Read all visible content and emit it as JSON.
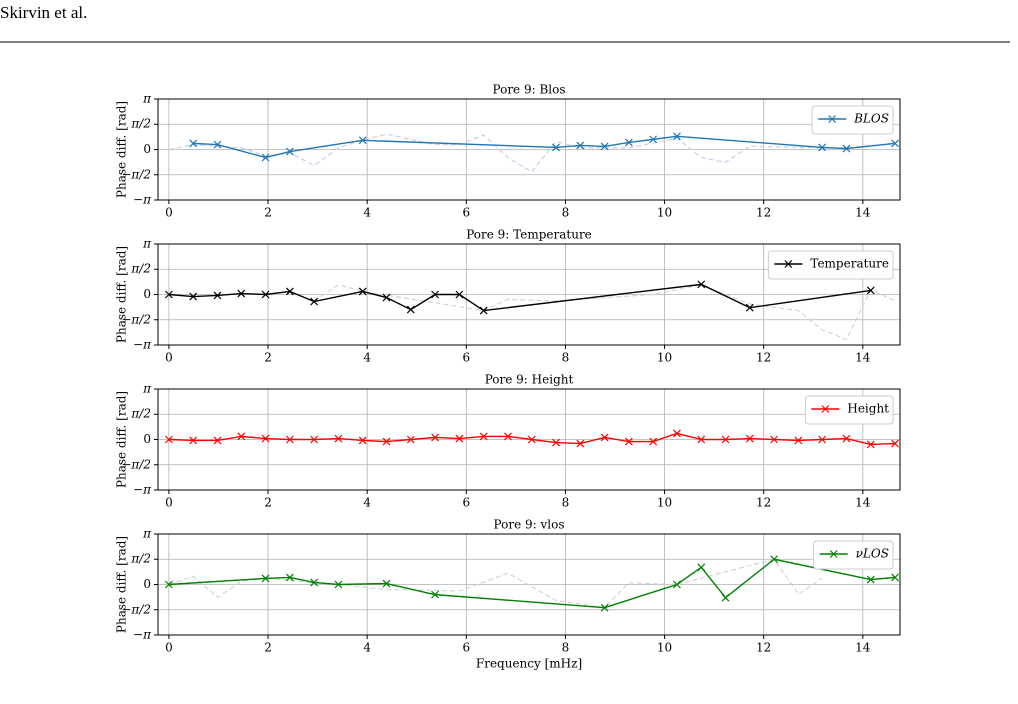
{
  "header": "Skirvin et al.",
  "chart_data": [
    {
      "type": "line",
      "title": "Pore 9: Blos",
      "ylabel": "Phase diff. [rad]",
      "xlim": [
        -0.22,
        14.75
      ],
      "xticks": [
        0,
        2,
        4,
        6,
        8,
        10,
        12,
        14
      ],
      "ylim": [
        -3.14159,
        3.14159
      ],
      "yticks": [
        {
          "value": -3.14159,
          "label": "−π"
        },
        {
          "value": -1.5708,
          "label": "−π/2"
        },
        0,
        {
          "value": 1.5708,
          "label": "π/2"
        },
        {
          "value": 3.14159,
          "label": "π"
        }
      ],
      "grid": true,
      "legend": "upper right",
      "series": [
        {
          "color": "#c9cdeb",
          "linestyle": "dashed",
          "x": [
            0,
            0.49,
            1.46,
            1.95,
            2.44,
            2.93,
            3.42,
            3.91,
            4.39,
            5.37,
            5.86,
            6.35,
            6.84,
            7.32,
            7.81,
            8.3,
            9.28,
            10.25,
            10.74,
            11.23,
            11.72,
            13.18,
            13.67,
            14.65
          ],
          "values": [
            0,
            0.3,
            0.1,
            -0.4,
            -0.2,
            -1.0,
            0.1,
            0.6,
            0.95,
            0.3,
            0.3,
            0.9,
            -0.5,
            -1.4,
            0.5,
            0.1,
            0.1,
            0.7,
            -0.5,
            -0.8,
            0.2,
            0.1,
            0.1,
            0.4
          ]
        },
        {
          "name": "BLOS",
          "color": "#1f77b4",
          "linestyle": "solid",
          "marker": "x",
          "x": [
            0.49,
            0.98,
            1.95,
            2.44,
            3.91,
            7.81,
            8.3,
            8.79,
            9.28,
            9.77,
            10.25,
            13.18,
            13.67,
            14.65
          ],
          "values": [
            0.38,
            0.31,
            -0.5,
            -0.13,
            0.57,
            0.13,
            0.25,
            0.19,
            0.44,
            0.63,
            0.82,
            0.13,
            0.06,
            0.38
          ]
        }
      ]
    },
    {
      "type": "line",
      "title": "Pore 9: Temperature",
      "ylabel": "Phase diff. [rad]",
      "xlim": [
        -0.22,
        14.75
      ],
      "xticks": [
        0,
        2,
        4,
        6,
        8,
        10,
        12,
        14
      ],
      "ylim": [
        -3.14159,
        3.14159
      ],
      "yticks": [
        {
          "value": -3.14159,
          "label": "−π"
        },
        {
          "value": -1.5708,
          "label": "−π/2"
        },
        0,
        {
          "value": 1.5708,
          "label": "π/2"
        },
        {
          "value": 3.14159,
          "label": "π"
        }
      ],
      "grid": true,
      "legend": "upper right",
      "series": [
        {
          "color": "#d4d4d4",
          "linestyle": "dashed",
          "x": [
            2.93,
            3.42,
            3.91,
            6.35,
            6.84,
            7.81,
            9.77,
            10.74,
            11.72,
            12.7,
            13.18,
            13.67,
            14.16,
            14.65
          ],
          "values": [
            -0.4,
            0.6,
            0.2,
            -1.0,
            -0.3,
            -0.4,
            0.0,
            0.6,
            -0.6,
            -1.0,
            -2.2,
            -2.8,
            0.3,
            -0.4
          ]
        },
        {
          "name": "Temperature",
          "color": "#000000",
          "linestyle": "solid",
          "marker": "x",
          "x": [
            0,
            0.49,
            0.98,
            1.46,
            1.95,
            2.44,
            2.93,
            3.91,
            4.39,
            4.88,
            5.37,
            5.86,
            6.35,
            10.74,
            11.72,
            14.16
          ],
          "values": [
            0,
            -0.13,
            -0.06,
            0.06,
            0,
            0.19,
            -0.44,
            0.19,
            -0.19,
            -0.94,
            0,
            0,
            -1.0,
            0.63,
            -0.82,
            0.25
          ]
        }
      ]
    },
    {
      "type": "line",
      "title": "Pore 9: Height",
      "ylabel": "Phase diff. [rad]",
      "xlim": [
        -0.22,
        14.75
      ],
      "xticks": [
        0,
        2,
        4,
        6,
        8,
        10,
        12,
        14
      ],
      "ylim": [
        -3.14159,
        3.14159
      ],
      "yticks": [
        {
          "value": -3.14159,
          "label": "−π"
        },
        {
          "value": -1.5708,
          "label": "−π/2"
        },
        0,
        {
          "value": 1.5708,
          "label": "π/2"
        },
        {
          "value": 3.14159,
          "label": "π"
        }
      ],
      "grid": true,
      "legend": "upper right",
      "series": [
        {
          "name": "Height",
          "color": "#ff0000",
          "linestyle": "solid",
          "marker": "x",
          "x": [
            0,
            0.49,
            0.98,
            1.46,
            1.95,
            2.44,
            2.93,
            3.42,
            3.91,
            4.39,
            4.88,
            5.37,
            5.86,
            6.35,
            6.84,
            7.32,
            7.81,
            8.3,
            8.79,
            9.28,
            9.77,
            10.25,
            10.74,
            11.23,
            11.72,
            12.21,
            12.7,
            13.18,
            13.67,
            14.16,
            14.65
          ],
          "values": [
            0,
            -0.06,
            -0.06,
            0.19,
            0.06,
            0,
            0,
            0.06,
            -0.06,
            -0.13,
            0,
            0.13,
            0.06,
            0.19,
            0.19,
            0,
            -0.19,
            -0.25,
            0.13,
            -0.13,
            -0.13,
            0.38,
            0,
            0,
            0.06,
            0,
            -0.06,
            0,
            0.06,
            -0.31,
            -0.25
          ]
        }
      ]
    },
    {
      "type": "line",
      "title": "Pore 9: vlos",
      "ylabel": "Phase diff. [rad]",
      "xlabel": "Frequency [mHz]",
      "xlim": [
        -0.22,
        14.75
      ],
      "xticks": [
        0,
        2,
        4,
        6,
        8,
        10,
        12,
        14
      ],
      "ylim": [
        -3.14159,
        3.14159
      ],
      "yticks": [
        {
          "value": -3.14159,
          "label": "−π"
        },
        {
          "value": -1.5708,
          "label": "−π/2"
        },
        0,
        {
          "value": 1.5708,
          "label": "π/2"
        },
        {
          "value": 3.14159,
          "label": "π"
        }
      ],
      "grid": true,
      "legend": "upper right",
      "series": [
        {
          "color": "#d4d4d4",
          "linestyle": "dashed",
          "x": [
            0,
            0.49,
            0.98,
            1.46,
            1.95,
            4.39,
            5.86,
            6.84,
            7.81,
            8.79,
            9.28,
            10.25,
            12.21,
            12.7,
            13.18
          ],
          "values": [
            0,
            0.5,
            -0.8,
            0.2,
            0.4,
            -0.3,
            -0.4,
            0.7,
            -1.0,
            -1.44,
            0.1,
            0,
            1.57,
            -0.6,
            0.4
          ]
        },
        {
          "name": "νLOS",
          "color": "#008000",
          "linestyle": "solid",
          "marker": "x",
          "x": [
            0,
            1.95,
            2.44,
            2.93,
            3.42,
            4.39,
            5.37,
            8.79,
            10.25,
            10.74,
            11.23,
            12.21,
            14.16,
            14.65
          ],
          "values": [
            0,
            0.38,
            0.44,
            0.13,
            0,
            0.06,
            -0.63,
            -1.44,
            0,
            1.07,
            -0.82,
            1.57,
            0.31,
            0.44
          ]
        }
      ]
    }
  ]
}
